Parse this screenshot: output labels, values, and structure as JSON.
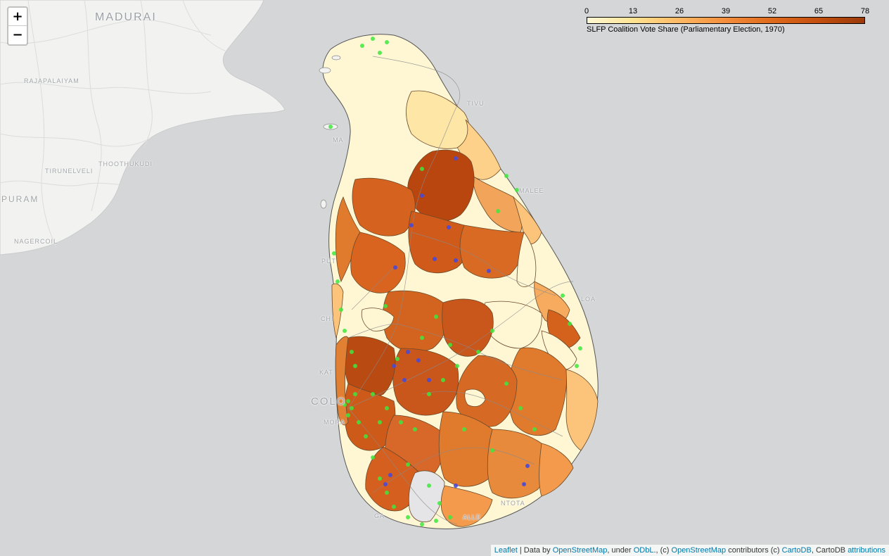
{
  "map": {
    "place_labels": {
      "madurai": "MADURAI",
      "rajapalaiyam": "RAJAPALAIYAM",
      "thoothukudi": "THOOTHUKUDI",
      "tirunelveli": "TIRUNELVELI",
      "puram": "PURAM",
      "nagercoil": "NAGERCOIL",
      "colombo_partial": "COLO",
      "moratuwa_partial": "MORA",
      "kalutara_partial": "KAT",
      "chilaw_partial": "CHI",
      "puttalam_partial": "PUT",
      "mannar_partial": "MA",
      "mullaitivu_partial": "TIVU",
      "trincomalee_partial": "MALEE",
      "batticaloa_partial": "LOA",
      "galle_partial": "GA",
      "matara_partial": "ALLE",
      "hambantota_partial": "NTOTA"
    },
    "colors": {
      "water": "#d4d6d8",
      "land": "#f2f2f0",
      "boundary": "#5b5b5b",
      "road": "#8a8a8a",
      "green_marker": "#3ee83e",
      "blue_marker": "#4a4ad8"
    }
  },
  "zoom": {
    "in_label": "+",
    "out_label": "−"
  },
  "legend": {
    "ticks": [
      "0",
      "13",
      "26",
      "39",
      "52",
      "65",
      "78"
    ],
    "min": 0,
    "max": 78,
    "caption": "SLFP Coalition Vote Share (Parliamentary Election, 1970)",
    "colors": [
      "#fff7d4",
      "#fee391",
      "#fdb863",
      "#f38d3c",
      "#df6a1c",
      "#c44f0f",
      "#9a3a0a"
    ]
  },
  "attribution": {
    "leaflet": "Leaflet",
    "sep1": " | Data by ",
    "osm1": "OpenStreetMap",
    "sep2": ", under ",
    "odbl": "ODbL",
    "sep3": "., (c) ",
    "osm2": "OpenStreetMap",
    "sep4": " contributors (c) ",
    "cartodb": "CartoDB",
    "sep5": ", CartoDB ",
    "attributions": "attributions"
  }
}
